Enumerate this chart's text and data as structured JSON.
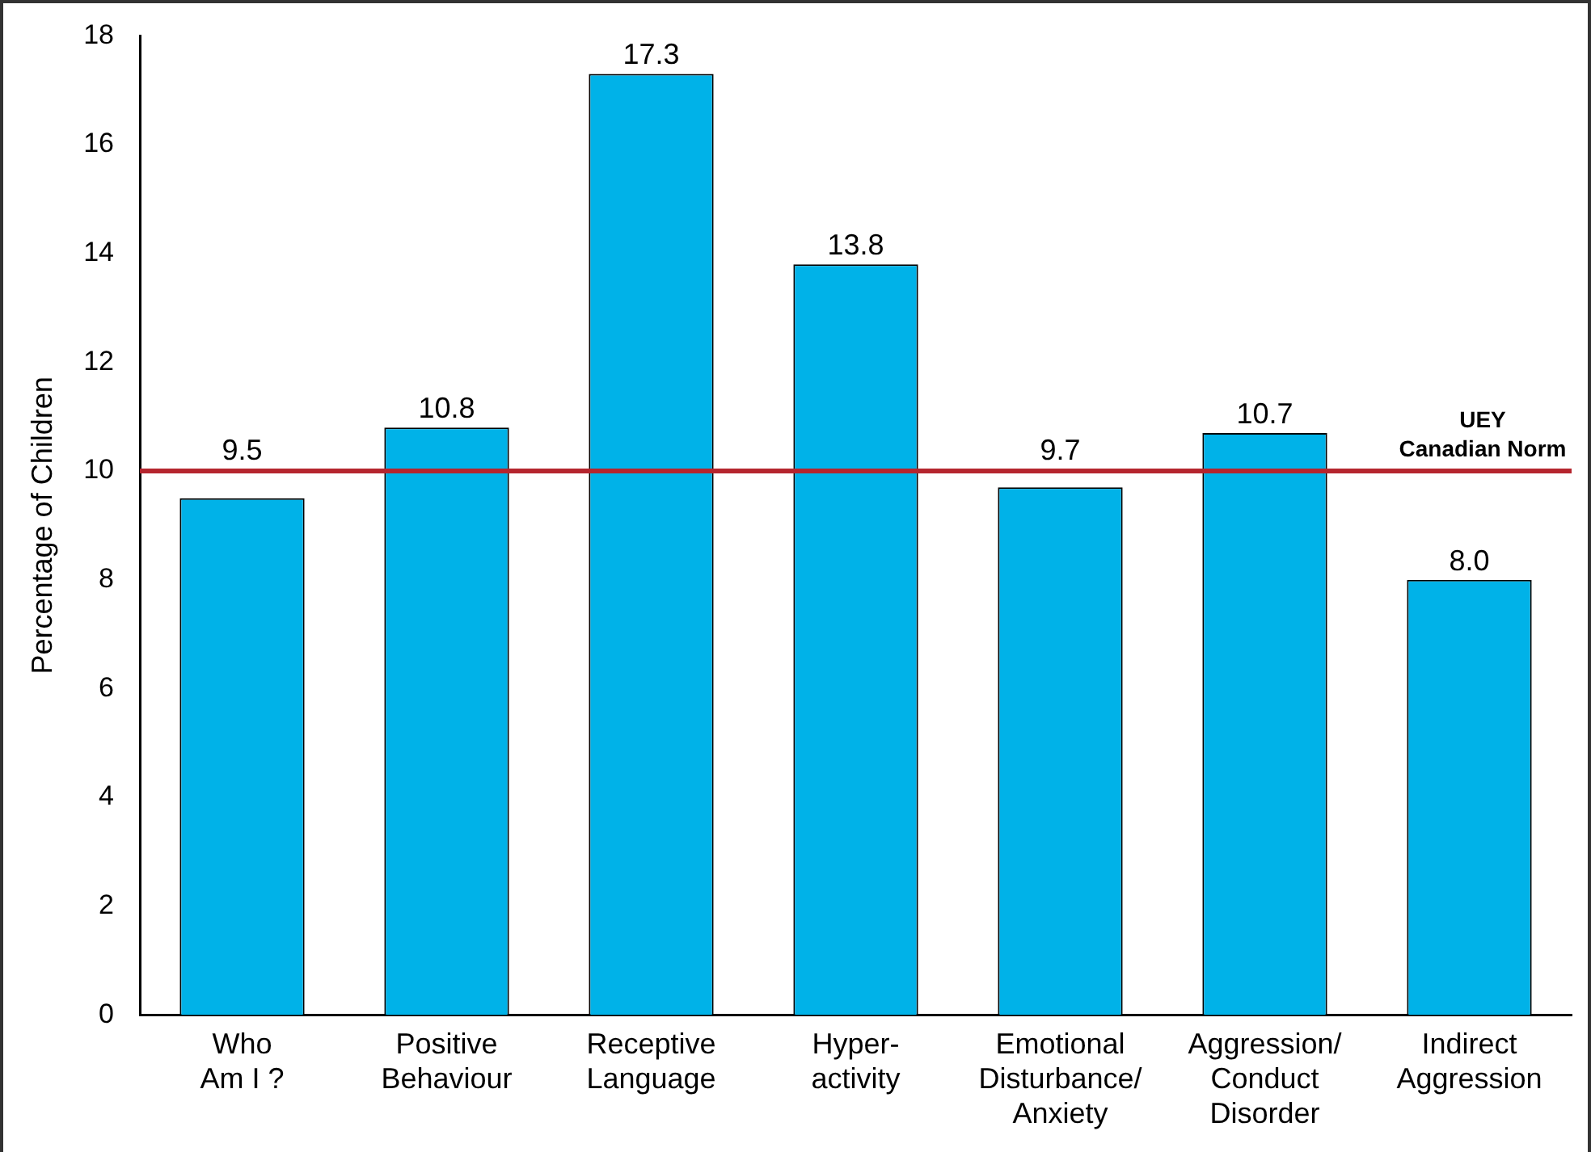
{
  "chart_data": {
    "type": "bar",
    "ylabel": "Percentage of Children",
    "categories": [
      "Who\nAm I ?",
      "Positive\nBehaviour",
      "Receptive\nLanguage",
      "Hyper-\nactivity",
      "Emotional\nDisturbance/\nAnxiety",
      "Aggression/\nConduct\nDisorder",
      "Indirect\nAggression"
    ],
    "values": [
      9.5,
      10.8,
      17.3,
      13.8,
      9.7,
      10.7,
      8.0
    ],
    "value_labels": [
      "9.5",
      "10.8",
      "17.3",
      "13.8",
      "9.7",
      "10.7",
      "8.0"
    ],
    "color": "#00b2e8",
    "ylim": [
      0,
      18
    ],
    "yticks": [
      0,
      2,
      4,
      6,
      8,
      10,
      12,
      14,
      16,
      18
    ],
    "grid": false,
    "ref_lines": [
      {
        "axis": "y",
        "value": 10,
        "label": "UEY\nCanadian Norm",
        "color": "#b5252e"
      }
    ]
  }
}
